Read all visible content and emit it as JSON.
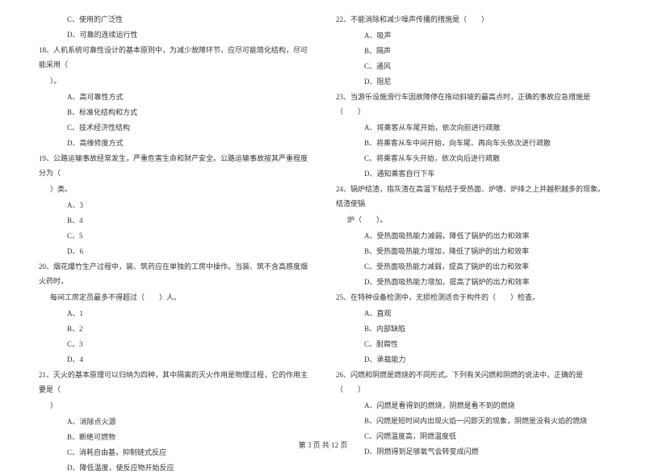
{
  "leftColumn": {
    "items": [
      {
        "type": "option",
        "text": "C、使用的广泛性"
      },
      {
        "type": "option",
        "text": "D、可靠的连续运行性"
      },
      {
        "type": "question",
        "text": "18、人机系统可靠性设计的基本原则中，为减少故障环节，应尽可能简化结构，尽可能采用（"
      },
      {
        "type": "continuation",
        "text": "）。"
      },
      {
        "type": "option",
        "text": "A、高可靠性方式"
      },
      {
        "type": "option",
        "text": "B、标准化结构和方式"
      },
      {
        "type": "option",
        "text": "C、技术经济性结构"
      },
      {
        "type": "option",
        "text": "D、高维修度方式"
      },
      {
        "type": "question",
        "text": "19、公路运输事故经常发生，严重危害生命和财产安全。公路运输事故按其严重程度分为（"
      },
      {
        "type": "continuation",
        "text": "）类。"
      },
      {
        "type": "option",
        "text": "A、3"
      },
      {
        "type": "option",
        "text": "B、4"
      },
      {
        "type": "option",
        "text": "C、5"
      },
      {
        "type": "option",
        "text": "D、6"
      },
      {
        "type": "question",
        "text": "20、烟花爆竹生产过程中，装、筑药应在单独的工房中操作。当装、筑不含高感度烟火药时，"
      },
      {
        "type": "continuation",
        "text": "每间工房定员最多不得超过（　　）人。"
      },
      {
        "type": "option",
        "text": "A、1"
      },
      {
        "type": "option",
        "text": "B、2"
      },
      {
        "type": "option",
        "text": "C、3"
      },
      {
        "type": "option",
        "text": "D、4"
      },
      {
        "type": "question",
        "text": "21、灭火的基本原理可以归纳为四种，其中隔离的灭火作用是物理过程，它的作用主要是（"
      },
      {
        "type": "continuation",
        "text": "）"
      },
      {
        "type": "option",
        "text": "A、消除点火源"
      },
      {
        "type": "option",
        "text": "B、断绝可燃物"
      },
      {
        "type": "option",
        "text": "C、消耗自由基，抑制链式反应"
      },
      {
        "type": "option",
        "text": "D、降低温度，使反应物开始反应"
      }
    ]
  },
  "rightColumn": {
    "items": [
      {
        "type": "question",
        "text": "22、不能消除和减少噪声传播的措施是（　　）"
      },
      {
        "type": "option",
        "text": "A、吸声"
      },
      {
        "type": "option",
        "text": "B、隔声"
      },
      {
        "type": "option",
        "text": "C、通风"
      },
      {
        "type": "option",
        "text": "D、阻尼"
      },
      {
        "type": "question",
        "text": "23、当游乐设施滑行车因故障停在拖动斜坡的最高点时，正确的事故应急措施是（　　）"
      },
      {
        "type": "option",
        "text": "A、将乘客从车尾开始，依次向前进行疏散"
      },
      {
        "type": "option",
        "text": "B、将乘客从车中间开始，向车尾、再向车头依次进行疏散"
      },
      {
        "type": "option",
        "text": "C、将乘客从车头开始，依次向后进行疏散"
      },
      {
        "type": "option",
        "text": "D、通知乘客自行下车"
      },
      {
        "type": "question",
        "text": "24、锅炉结渣，指灰渣在高温下粘结于受热面、炉墙、炉排之上并越积越多的现象。结渣使锅"
      },
      {
        "type": "continuation",
        "text": "炉（　　）。"
      },
      {
        "type": "option",
        "text": "A、受热面吸热能力减弱，降低了锅炉的出力和效率"
      },
      {
        "type": "option",
        "text": "B、受热面吸热能力增加，降低了锅炉的出力和效率"
      },
      {
        "type": "option",
        "text": "C、受热面吸热能力减弱，提高了锅炉的出力和效率"
      },
      {
        "type": "option",
        "text": "D、受热面吸热能力增加，提高了锅炉的出力和效率"
      },
      {
        "type": "question",
        "text": "25、在特种设备检测中，无损检测适合于构件的（　　）检查。"
      },
      {
        "type": "option",
        "text": "A、直观"
      },
      {
        "type": "option",
        "text": "B、内部缺陷"
      },
      {
        "type": "option",
        "text": "C、耐腐性"
      },
      {
        "type": "option",
        "text": "D、承载能力"
      },
      {
        "type": "question",
        "text": "26、闪燃和阴燃是燃烧的不同形式。下列有关闪燃和阴燃的说法中，正确的是（　　）"
      },
      {
        "type": "option",
        "text": "A、闪燃是看得到的燃烧，阴燃是看不到的燃烧"
      },
      {
        "type": "option",
        "text": "B、闪燃是短时间内出现火焰一闪即灭的现象，阴燃是没有火焰的燃烧"
      },
      {
        "type": "option",
        "text": "C、闪燃温度高，阴燃温度低"
      },
      {
        "type": "option",
        "text": "D、阴燃得到足够氧气会转变成闪燃"
      }
    ]
  },
  "footer": {
    "text": "第 3 页 共 12 页"
  },
  "styling": {
    "fontSize": 9,
    "lineHeight": 2.0,
    "textColor": "#333333",
    "backgroundColor": "#ffffff",
    "optionIndent": 35,
    "continuationIndent": 14
  }
}
